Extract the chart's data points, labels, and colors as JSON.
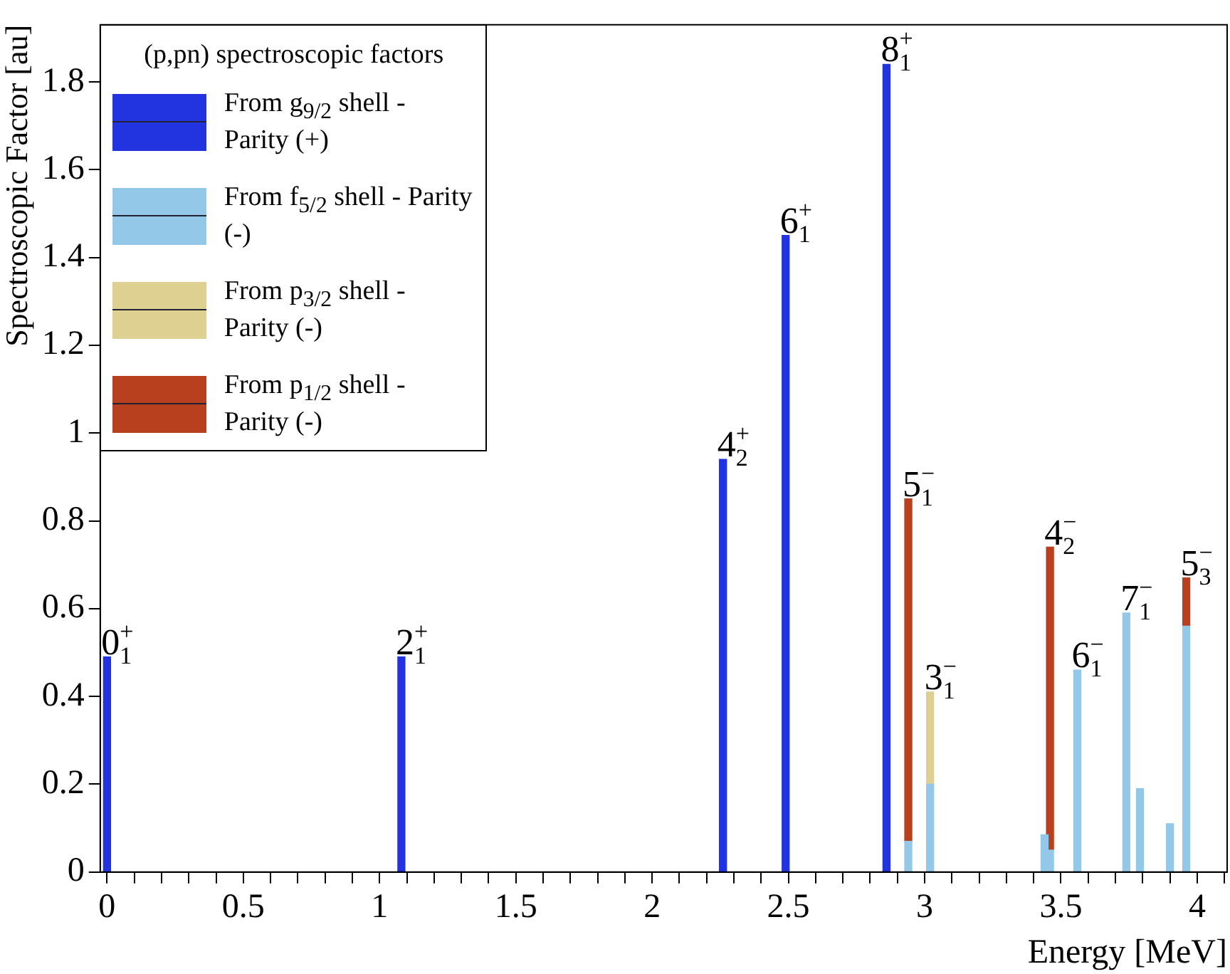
{
  "chart_data": {
    "type": "bar",
    "stacked": true,
    "xlabel": "Energy [MeV]",
    "ylabel": "Spectroscopic Factor [au]",
    "legend_title": "(p,pn) spectroscopic factors",
    "legend": "top left",
    "grid": false,
    "x": [
      0,
      1.08,
      2.26,
      2.49,
      2.86,
      2.94,
      3.02,
      3.44,
      3.46,
      3.56,
      3.74,
      3.79,
      3.9,
      3.96
    ],
    "series": [
      {
        "name": "From g$_{9/2}$ shell - Parity (+)",
        "color": "#2233e0",
        "values": [
          0.49,
          0.49,
          0.94,
          1.45,
          1.84,
          null,
          null,
          null,
          null,
          null,
          null,
          null,
          null,
          null
        ]
      },
      {
        "name": "From f$_{5/2}$ shell - Parity (-)",
        "color": "#94c8e8",
        "values": [
          null,
          null,
          null,
          null,
          null,
          0.07,
          0.2,
          0.085,
          0.05,
          0.46,
          0.59,
          0.19,
          0.11,
          0.56
        ]
      },
      {
        "name": "From p$_{3/2}$ shell - Parity (-)",
        "color": "#ddd090",
        "values": [
          null,
          null,
          null,
          null,
          null,
          null,
          0.21,
          null,
          null,
          null,
          null,
          null,
          null,
          null
        ]
      },
      {
        "name": "From p$_{1/2}$ shell - Parity (-)",
        "color": "#b8401e",
        "values": [
          null,
          null,
          null,
          null,
          null,
          0.78,
          null,
          null,
          0.69,
          null,
          null,
          null,
          null,
          0.11
        ]
      }
    ],
    "xlim": [
      -0.025,
      4.11
    ],
    "ylim": [
      0,
      1.93
    ],
    "xticks": [
      0,
      {
        "value": 0.1,
        "label": null
      },
      {
        "value": 0.2,
        "label": null
      },
      {
        "value": 0.3,
        "label": null
      },
      {
        "value": 0.4,
        "label": null
      },
      0.5,
      {
        "value": 0.6,
        "label": null
      },
      {
        "value": 0.7,
        "label": null
      },
      {
        "value": 0.8,
        "label": null
      },
      {
        "value": 0.9,
        "label": null
      },
      1,
      {
        "value": 1.1,
        "label": null
      },
      {
        "value": 1.2,
        "label": null
      },
      {
        "value": 1.3,
        "label": null
      },
      {
        "value": 1.4,
        "label": null
      },
      1.5,
      {
        "value": 1.6,
        "label": null
      },
      {
        "value": 1.7,
        "label": null
      },
      {
        "value": 1.8,
        "label": null
      },
      {
        "value": 1.9,
        "label": null
      },
      2,
      {
        "value": 2.1,
        "label": null
      },
      {
        "value": 2.2,
        "label": null
      },
      {
        "value": 2.3,
        "label": null
      },
      {
        "value": 2.4,
        "label": null
      },
      2.5,
      {
        "value": 2.6,
        "label": null
      },
      {
        "value": 2.7,
        "label": null
      },
      {
        "value": 2.8,
        "label": null
      },
      {
        "value": 2.9,
        "label": null
      },
      3,
      {
        "value": 3.1,
        "label": null
      },
      {
        "value": 3.2,
        "label": null
      },
      {
        "value": 3.3,
        "label": null
      },
      {
        "value": 3.4,
        "label": null
      },
      3.5,
      {
        "value": 3.6,
        "label": null
      },
      {
        "value": 3.7,
        "label": null
      },
      {
        "value": 3.8,
        "label": null
      },
      {
        "value": 3.9,
        "label": null
      },
      4,
      {
        "value": 4.1,
        "label": null
      }
    ],
    "yticks": [
      0,
      0.2,
      0.4,
      0.6,
      0.8,
      1,
      1.2,
      1.4,
      1.6,
      1.8
    ],
    "annotations": [
      {
        "text": "0$^{+}$$_{1}$",
        "x": 0,
        "y": 0.49
      },
      {
        "text": "2$^{+}$$_{1}$",
        "x": 1.08,
        "y": 0.49
      },
      {
        "text": "4$^{+}$$_{2}$",
        "x": 2.26,
        "y": 0.94
      },
      {
        "text": "6$^{+}$$_{1}$",
        "x": 2.49,
        "y": 1.45
      },
      {
        "text": "8$^{+}$$_{1}$",
        "x": 2.86,
        "y": 1.84
      },
      {
        "text": "5$^{−}$$_{1}$",
        "x": 2.94,
        "y": 0.85
      },
      {
        "text": "3$^{−}$$_{1}$",
        "x": 3.02,
        "y": 0.41
      },
      {
        "text": "4$^{−}$$_{2}$",
        "x": 3.46,
        "y": 0.74
      },
      {
        "text": "6$^{−}$$_{1}$",
        "x": 3.56,
        "y": 0.46
      },
      {
        "text": "7$^{−}$$_{1}$",
        "x": 3.74,
        "y": 0.59
      },
      {
        "text": "5$^{−}$$_{3}$",
        "x": 3.96,
        "y": 0.67
      }
    ]
  }
}
